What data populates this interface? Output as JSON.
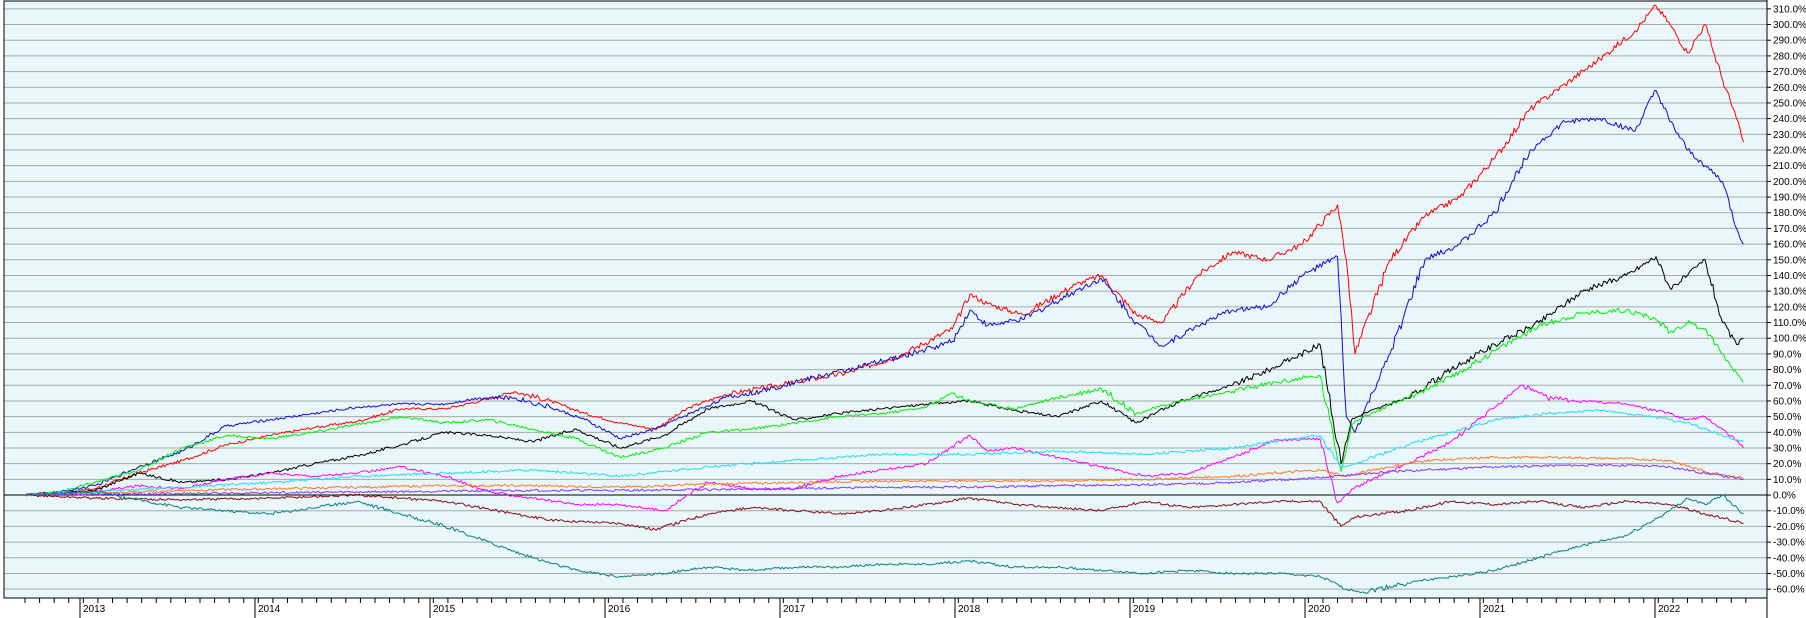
{
  "chart_data": {
    "type": "line",
    "title": "",
    "xlabel": "",
    "ylabel": "",
    "ylim": [
      -65,
      315
    ],
    "xlim": [
      2012.6,
      2022.45
    ],
    "y_ticks": [
      310,
      300,
      290,
      280,
      270,
      260,
      250,
      240,
      230,
      220,
      210,
      200,
      190,
      180,
      170,
      160,
      150,
      140,
      130,
      120,
      110,
      100,
      90,
      80,
      70,
      60,
      50,
      40,
      30,
      20,
      10,
      0,
      -10,
      -20,
      -30,
      -40,
      -50,
      -60
    ],
    "y_tick_suffix": "%",
    "x_ticks": [
      {
        "label": "2013",
        "value": 2013
      },
      {
        "label": "2014",
        "value": 2014
      },
      {
        "label": "2015",
        "value": 2015
      },
      {
        "label": "2016",
        "value": 2016
      },
      {
        "label": "2017",
        "value": 2017
      },
      {
        "label": "2018",
        "value": 2018
      },
      {
        "label": "2019",
        "value": 2019
      },
      {
        "label": "2020",
        "value": 2020
      },
      {
        "label": "2021",
        "value": 2021
      },
      {
        "label": "2022",
        "value": 2022
      }
    ],
    "grid": true,
    "legend": "none",
    "plot_background_above_zero": "#e9f7fb",
    "plot_background_below_zero": "#e9f7fb",
    "series": [
      {
        "color": "#ff0000",
        "x": [
          2012.6,
          2012.8,
          2013.0,
          2013.25,
          2013.5,
          2013.75,
          2014.0,
          2014.25,
          2014.5,
          2014.75,
          2015.0,
          2015.2,
          2015.4,
          2015.6,
          2015.8,
          2016.0,
          2016.2,
          2016.4,
          2016.6,
          2016.8,
          2017.0,
          2017.3,
          2017.6,
          2017.9,
          2018.0,
          2018.1,
          2018.3,
          2018.6,
          2018.75,
          2018.95,
          2019.1,
          2019.3,
          2019.5,
          2019.7,
          2019.9,
          2020.1,
          2020.15,
          2020.2,
          2020.4,
          2020.6,
          2020.8,
          2021.0,
          2021.2,
          2021.4,
          2021.6,
          2021.8,
          2021.92,
          2022.0,
          2022.1,
          2022.2,
          2022.3,
          2022.38,
          2022.42
        ],
        "y": [
          0,
          1,
          4,
          14,
          22,
          32,
          38,
          43,
          47,
          55,
          55,
          60,
          66,
          60,
          52,
          46,
          42,
          56,
          64,
          68,
          72,
          78,
          89,
          106,
          128,
          122,
          115,
          134,
          140,
          115,
          110,
          140,
          155,
          150,
          160,
          185,
          150,
          90,
          150,
          178,
          190,
          215,
          246,
          262,
          278,
          296,
          312,
          300,
          282,
          300,
          265,
          240,
          225
        ]
      },
      {
        "color": "#1a0acc",
        "x": [
          2012.6,
          2012.8,
          2013.0,
          2013.25,
          2013.5,
          2013.75,
          2014.0,
          2014.25,
          2014.5,
          2014.75,
          2015.0,
          2015.2,
          2015.4,
          2015.6,
          2015.8,
          2016.0,
          2016.2,
          2016.4,
          2016.6,
          2016.8,
          2017.0,
          2017.3,
          2017.6,
          2017.9,
          2018.0,
          2018.1,
          2018.3,
          2018.6,
          2018.75,
          2018.95,
          2019.1,
          2019.3,
          2019.5,
          2019.7,
          2019.9,
          2020.1,
          2020.15,
          2020.2,
          2020.4,
          2020.6,
          2020.8,
          2021.0,
          2021.2,
          2021.4,
          2021.6,
          2021.8,
          2021.92,
          2022.0,
          2022.1,
          2022.2,
          2022.3,
          2022.38,
          2022.42
        ],
        "y": [
          0,
          2,
          6,
          18,
          28,
          44,
          48,
          52,
          56,
          58,
          58,
          62,
          62,
          56,
          48,
          36,
          42,
          52,
          62,
          66,
          72,
          80,
          88,
          98,
          118,
          108,
          112,
          130,
          138,
          110,
          95,
          108,
          118,
          120,
          140,
          152,
          50,
          40,
          90,
          150,
          160,
          180,
          220,
          238,
          240,
          232,
          258,
          238,
          220,
          210,
          200,
          170,
          160
        ]
      },
      {
        "color": "#000000",
        "x": [
          2012.6,
          2012.8,
          2013.0,
          2013.25,
          2013.5,
          2013.75,
          2014.0,
          2014.25,
          2014.5,
          2014.75,
          2015.0,
          2015.25,
          2015.5,
          2015.75,
          2016.0,
          2016.25,
          2016.5,
          2016.75,
          2017.0,
          2017.25,
          2017.5,
          2017.75,
          2018.0,
          2018.25,
          2018.5,
          2018.75,
          2018.95,
          2019.2,
          2019.5,
          2019.75,
          2020.0,
          2020.12,
          2020.18,
          2020.25,
          2020.5,
          2020.75,
          2021.0,
          2021.25,
          2021.5,
          2021.75,
          2021.92,
          2022.0,
          2022.1,
          2022.2,
          2022.3,
          2022.38,
          2022.42
        ],
        "y": [
          0,
          1,
          3,
          14,
          8,
          10,
          14,
          20,
          25,
          32,
          40,
          38,
          34,
          42,
          30,
          38,
          55,
          60,
          48,
          52,
          55,
          58,
          60,
          54,
          50,
          60,
          46,
          60,
          70,
          82,
          96,
          20,
          48,
          52,
          62,
          80,
          96,
          110,
          130,
          140,
          152,
          132,
          140,
          150,
          110,
          96,
          100
        ]
      },
      {
        "color": "#00ee00",
        "x": [
          2012.6,
          2012.8,
          2013.0,
          2013.25,
          2013.5,
          2013.75,
          2014.0,
          2014.25,
          2014.5,
          2014.75,
          2015.0,
          2015.25,
          2015.5,
          2015.75,
          2016.0,
          2016.25,
          2016.5,
          2016.75,
          2017.0,
          2017.25,
          2017.5,
          2017.75,
          2017.9,
          2018.0,
          2018.25,
          2018.5,
          2018.75,
          2018.95,
          2019.2,
          2019.5,
          2019.75,
          2020.0,
          2020.12,
          2020.18,
          2020.25,
          2020.5,
          2020.75,
          2021.0,
          2021.25,
          2021.5,
          2021.75,
          2021.92,
          2022.0,
          2022.1,
          2022.2,
          2022.3,
          2022.38,
          2022.42
        ],
        "y": [
          0,
          2,
          8,
          16,
          30,
          38,
          36,
          40,
          45,
          50,
          46,
          48,
          42,
          36,
          24,
          30,
          40,
          42,
          46,
          50,
          52,
          56,
          65,
          60,
          55,
          62,
          68,
          52,
          60,
          66,
          72,
          76,
          15,
          45,
          50,
          62,
          75,
          92,
          108,
          116,
          118,
          112,
          104,
          110,
          106,
          90,
          78,
          72
        ]
      },
      {
        "color": "#ff00ff",
        "x": [
          2012.6,
          2012.8,
          2013.0,
          2013.25,
          2013.5,
          2013.75,
          2014.0,
          2014.25,
          2014.5,
          2014.75,
          2015.0,
          2015.25,
          2015.5,
          2015.75,
          2016.0,
          2016.25,
          2016.5,
          2016.75,
          2017.0,
          2017.25,
          2017.5,
          2017.75,
          2018.0,
          2018.1,
          2018.25,
          2018.5,
          2018.75,
          2019.0,
          2019.25,
          2019.5,
          2019.75,
          2020.0,
          2020.1,
          2020.2,
          2020.5,
          2020.75,
          2021.0,
          2021.15,
          2021.3,
          2021.5,
          2021.75,
          2022.0,
          2022.1,
          2022.2,
          2022.3,
          2022.38,
          2022.42
        ],
        "y": [
          0,
          1,
          2,
          6,
          4,
          10,
          14,
          12,
          14,
          18,
          12,
          2,
          -2,
          -6,
          -6,
          -10,
          8,
          4,
          4,
          12,
          16,
          20,
          38,
          28,
          30,
          24,
          18,
          12,
          14,
          24,
          35,
          36,
          -5,
          5,
          20,
          34,
          56,
          70,
          62,
          60,
          58,
          52,
          48,
          50,
          42,
          35,
          30
        ]
      },
      {
        "color": "#22ddee",
        "x": [
          2012.6,
          2013.0,
          2013.5,
          2014.0,
          2014.5,
          2015.0,
          2015.5,
          2016.0,
          2016.5,
          2017.0,
          2017.5,
          2018.0,
          2018.5,
          2019.0,
          2019.5,
          2020.0,
          2020.12,
          2020.2,
          2020.5,
          2020.75,
          2021.0,
          2021.3,
          2021.6,
          2021.9,
          2022.1,
          2022.3,
          2022.42
        ],
        "y": [
          0,
          2,
          5,
          8,
          12,
          14,
          16,
          12,
          18,
          22,
          26,
          26,
          28,
          26,
          30,
          38,
          18,
          20,
          32,
          40,
          48,
          52,
          54,
          50,
          46,
          38,
          34
        ]
      },
      {
        "color": "#ff7722",
        "x": [
          2012.6,
          2013.0,
          2013.5,
          2014.0,
          2014.5,
          2015.0,
          2015.5,
          2016.0,
          2016.5,
          2017.0,
          2017.5,
          2018.0,
          2018.5,
          2019.0,
          2019.5,
          2020.0,
          2020.15,
          2020.3,
          2020.6,
          2021.0,
          2021.4,
          2021.8,
          2022.0,
          2022.2,
          2022.42
        ],
        "y": [
          0,
          1,
          3,
          4,
          5,
          6,
          6,
          5,
          7,
          8,
          9,
          9,
          9,
          10,
          12,
          16,
          12,
          16,
          22,
          24,
          24,
          23,
          22,
          15,
          11
        ]
      },
      {
        "color": "#8833ff",
        "x": [
          2012.6,
          2013.0,
          2013.5,
          2014.0,
          2014.5,
          2015.0,
          2015.5,
          2016.0,
          2016.5,
          2017.0,
          2017.5,
          2018.0,
          2018.5,
          2019.0,
          2019.5,
          2020.0,
          2020.3,
          2020.6,
          2021.0,
          2021.4,
          2021.8,
          2022.0,
          2022.2,
          2022.42
        ],
        "y": [
          0,
          0.5,
          1,
          1.5,
          2,
          2.5,
          3,
          3,
          3.5,
          4,
          5,
          5,
          6,
          6.5,
          8,
          11,
          14,
          16,
          18,
          19,
          19,
          18,
          14,
          10
        ]
      },
      {
        "color": "#8b0a14",
        "x": [
          2012.6,
          2013.0,
          2013.5,
          2014.0,
          2014.5,
          2015.0,
          2015.3,
          2015.6,
          2016.0,
          2016.2,
          2016.5,
          2016.75,
          2017.0,
          2017.25,
          2017.5,
          2017.75,
          2018.0,
          2018.25,
          2018.5,
          2018.75,
          2019.0,
          2019.25,
          2019.5,
          2019.75,
          2020.0,
          2020.12,
          2020.2,
          2020.5,
          2020.75,
          2021.0,
          2021.25,
          2021.5,
          2021.75,
          2022.0,
          2022.2,
          2022.42
        ],
        "y": [
          0,
          -2,
          -3,
          -2,
          0,
          -4,
          -10,
          -16,
          -18,
          -22,
          -12,
          -8,
          -10,
          -12,
          -10,
          -6,
          -2,
          -6,
          -8,
          -10,
          -4,
          -8,
          -6,
          -4,
          -4,
          -20,
          -14,
          -10,
          -4,
          -6,
          -4,
          -8,
          -4,
          -6,
          -12,
          -18
        ]
      },
      {
        "color": "#0a8080",
        "x": [
          2012.6,
          2013.0,
          2013.5,
          2014.0,
          2014.5,
          2015.0,
          2015.25,
          2015.5,
          2015.75,
          2016.0,
          2016.25,
          2016.5,
          2016.75,
          2017.0,
          2017.25,
          2017.5,
          2017.75,
          2018.0,
          2018.25,
          2018.5,
          2018.75,
          2019.0,
          2019.25,
          2019.5,
          2019.75,
          2020.0,
          2020.15,
          2020.25,
          2020.5,
          2020.75,
          2021.0,
          2021.25,
          2021.5,
          2021.75,
          2022.0,
          2022.1,
          2022.2,
          2022.3,
          2022.42
        ],
        "y": [
          0,
          2,
          -8,
          -12,
          -4,
          -20,
          -30,
          -40,
          -48,
          -52,
          -50,
          -46,
          -48,
          -46,
          -46,
          -44,
          -44,
          -42,
          -46,
          -46,
          -48,
          -50,
          -48,
          -50,
          -50,
          -52,
          -60,
          -62,
          -56,
          -52,
          -48,
          -40,
          -32,
          -26,
          -10,
          -2,
          -6,
          0,
          -12
        ]
      }
    ]
  }
}
